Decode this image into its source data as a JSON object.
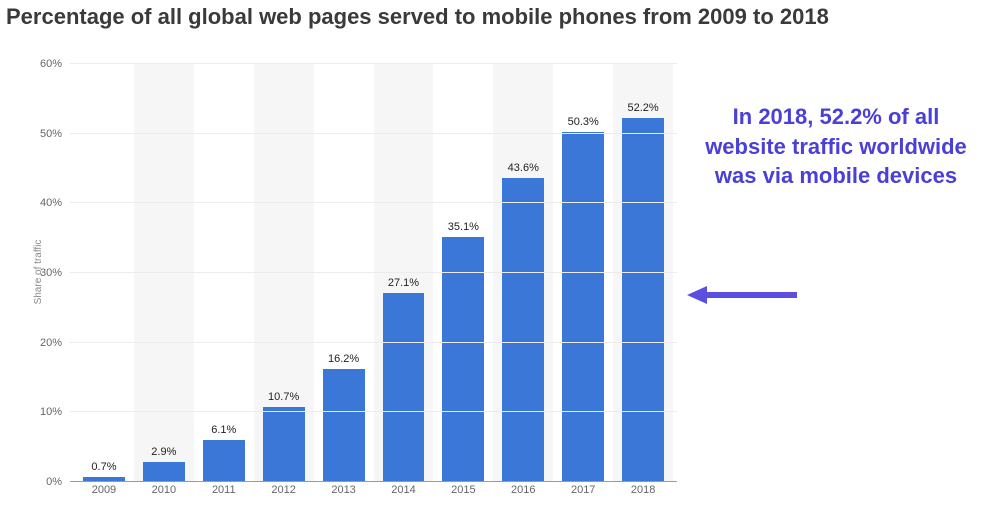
{
  "title": {
    "text": "Percentage of all global web pages served to mobile phones from 2009 to 2018",
    "fontsize": 22,
    "color": "#3a3a3a"
  },
  "chart": {
    "type": "bar",
    "ylabel": "Share of traffic",
    "ylabel_fontsize": 10,
    "ylabel_color": "#8a8a8a",
    "ylim": [
      0,
      60
    ],
    "ytick_step": 10,
    "yticks": [
      {
        "value": 0,
        "label": "0%"
      },
      {
        "value": 10,
        "label": "10%"
      },
      {
        "value": 20,
        "label": "20%"
      },
      {
        "value": 30,
        "label": "30%"
      },
      {
        "value": 40,
        "label": "40%"
      },
      {
        "value": 50,
        "label": "50%"
      },
      {
        "value": 60,
        "label": "60%"
      }
    ],
    "categories": [
      "2009",
      "2010",
      "2011",
      "2012",
      "2013",
      "2014",
      "2015",
      "2016",
      "2017",
      "2018"
    ],
    "values": [
      0.7,
      2.9,
      6.1,
      10.7,
      16.2,
      27.1,
      35.1,
      43.6,
      50.3,
      52.2
    ],
    "value_labels": [
      "0.7%",
      "2.9%",
      "6.1%",
      "10.7%",
      "16.2%",
      "27.1%",
      "35.1%",
      "43.6%",
      "50.3%",
      "52.2%"
    ],
    "bar_color": "#3a77d6",
    "bar_width": 0.7,
    "background_color": "#ffffff",
    "alt_column_bg": "#f6f6f6",
    "grid_color": "#ececec",
    "axis_line_color": "#9a9a9a",
    "tick_label_color": "#666666",
    "tick_label_fontsize": 11,
    "value_label_color": "#222222",
    "value_label_fontsize": 11
  },
  "annotation": {
    "text": "In 2018, 52.2% of all website traffic worldwide was via mobile devices",
    "color": "#4a3fd6",
    "fontsize": 22,
    "arrow_color": "#5a4fe0"
  }
}
